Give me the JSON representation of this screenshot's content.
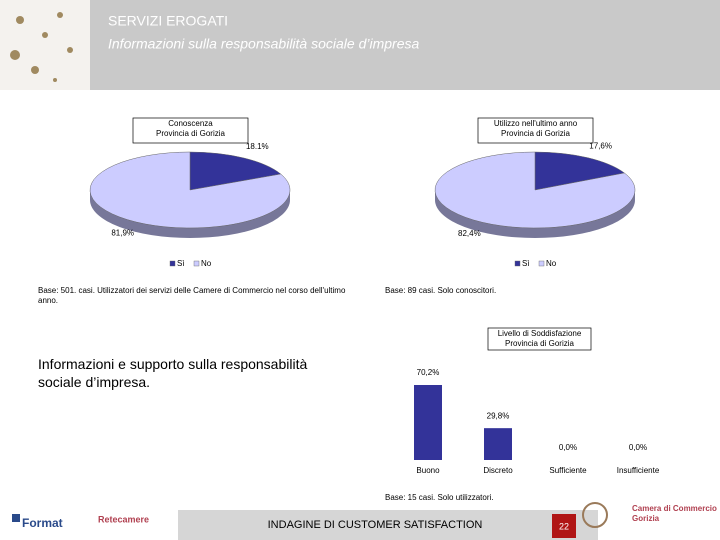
{
  "header": {
    "title": "SERVIZI EROGATI",
    "subtitle": "Informazioni sulla responsabilità sociale d’impresa"
  },
  "body_text": "Informazioni e supporto sulla responsabilità sociale d’impresa.",
  "chart_data": [
    {
      "type": "pie",
      "title": "Conoscenza",
      "subtitle": "Provincia di Gorizia",
      "categories": [
        "Sì",
        "No"
      ],
      "values": [
        18.1,
        81.9
      ],
      "value_labels": [
        "18.1%",
        "81,9%"
      ],
      "colors": [
        "#333399",
        "#ccccff"
      ],
      "note": "Base: 501. casi. Utilizzatori dei servizi delle Camere di Commercio nel corso dell'ultimo anno."
    },
    {
      "type": "pie",
      "title": "Utilizzo nell'ultimo anno",
      "subtitle": "Provincia di Gorizia",
      "categories": [
        "Sì",
        "No"
      ],
      "values": [
        17.6,
        82.4
      ],
      "value_labels": [
        "17,6%",
        "82,4%"
      ],
      "colors": [
        "#333399",
        "#ccccff"
      ],
      "note": "Base: 89 casi. Solo conoscitori."
    },
    {
      "type": "bar",
      "title": "Livello di Soddisfazione",
      "subtitle": "Provincia di Gorizia",
      "categories": [
        "Buono",
        "Discreto",
        "Sufficiente",
        "Insufficiente"
      ],
      "values": [
        70.2,
        29.8,
        0,
        0
      ],
      "value_labels": [
        "70,2%",
        "29,8%",
        "0,0%",
        "0,0%"
      ],
      "color": "#333399",
      "note": "Base: 15 casi. Solo utilizzatori."
    }
  ],
  "footer": {
    "left_logo": "Format",
    "second_logo": "Retecamere",
    "center": "INDAGINE DI CUSTOMER SATISFACTION",
    "page": "22",
    "right_logo_1": "Camera di Commercio",
    "right_logo_2": "Gorizia"
  }
}
